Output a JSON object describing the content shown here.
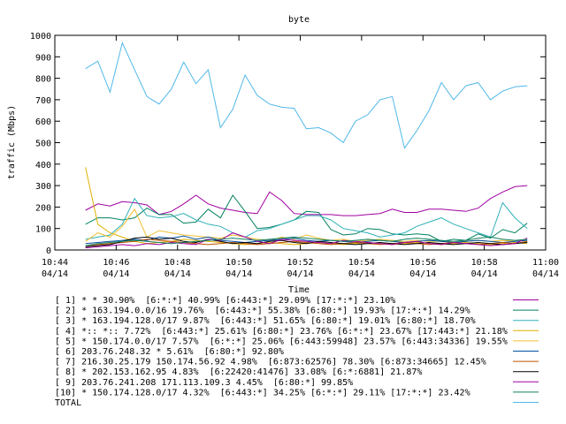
{
  "chart_data": {
    "type": "line",
    "title": "byte",
    "xlabel": "Time",
    "ylabel": "traffic (Mbps)",
    "ylim": [
      0,
      1000
    ],
    "yticks": [
      0,
      100,
      200,
      300,
      400,
      500,
      600,
      700,
      800,
      900,
      1000
    ],
    "xlim_min": [
      0,
      16
    ],
    "xticks": [
      {
        "m": 0,
        "time": "10:44",
        "date": "04/14"
      },
      {
        "m": 2,
        "time": "10:46",
        "date": "04/14"
      },
      {
        "m": 4,
        "time": "10:48",
        "date": "04/14"
      },
      {
        "m": 6,
        "time": "10:50",
        "date": "04/14"
      },
      {
        "m": 8,
        "time": "10:52",
        "date": "04/14"
      },
      {
        "m": 10,
        "time": "10:54",
        "date": "04/14"
      },
      {
        "m": 12,
        "time": "10:56",
        "date": "04/14"
      },
      {
        "m": 14,
        "time": "10:58",
        "date": "04/14"
      },
      {
        "m": 16,
        "time": "11:00",
        "date": "04/14"
      }
    ],
    "x": [
      1,
      1.4,
      1.8,
      2.2,
      2.6,
      3,
      3.4,
      3.8,
      4.2,
      4.6,
      5,
      5.4,
      5.8,
      6.2,
      6.6,
      7,
      7.4,
      7.8,
      8.2,
      8.6,
      9,
      9.4,
      9.8,
      10.2,
      10.6,
      11,
      11.4,
      11.8,
      12.2,
      12.6,
      13,
      13.4,
      13.8,
      14.2,
      14.6,
      15,
      15.4
    ],
    "grid": false,
    "legend_position": "bottom",
    "series": [
      {
        "name": "[ 1] * * 30.90%  [6:*:*] 40.99% [6:443:*] 29.09% [17:*:*] 23.10%",
        "color": "#a000a0",
        "values": [
          185,
          215,
          205,
          225,
          220,
          210,
          165,
          180,
          215,
          255,
          215,
          195,
          185,
          175,
          170,
          270,
          230,
          170,
          165,
          165,
          165,
          160,
          160,
          165,
          170,
          190,
          175,
          175,
          190,
          190,
          185,
          180,
          195,
          240,
          270,
          295,
          300
        ]
      },
      {
        "name": "[ 2] * 163.194.0.0/16 19.76%  [6:443:*] 55.38% [6:80:*] 19.93% [17:*:*] 14.29%",
        "color": "#00805f",
        "values": [
          120,
          150,
          150,
          140,
          150,
          195,
          165,
          165,
          125,
          130,
          190,
          150,
          255,
          180,
          100,
          105,
          120,
          140,
          180,
          175,
          95,
          70,
          75,
          100,
          95,
          75,
          70,
          75,
          70,
          40,
          50,
          45,
          75,
          55,
          95,
          80,
          125
        ]
      },
      {
        "name": "[ 3] * 163.194.128.0/17 9.87%  [6:443:*] 51.65% [6:80:*] 19.01% [6:80:*] 18.70%",
        "color": "#30b0b8",
        "values": [
          50,
          60,
          70,
          120,
          240,
          160,
          150,
          155,
          170,
          140,
          120,
          110,
          80,
          60,
          90,
          100,
          120,
          140,
          160,
          160,
          140,
          100,
          90,
          80,
          60,
          70,
          80,
          110,
          130,
          150,
          120,
          100,
          80,
          60,
          220,
          150,
          100
        ]
      },
      {
        "name": "[ 4] *:: *:: 7.72%  [6:443:*] 25.61% [6:80:*] 23.76% [6:*:*] 23.67% [17:443:*] 21.18%",
        "color": "#e0b000",
        "values": [
          385,
          120,
          80,
          60,
          40,
          30,
          35,
          40,
          50,
          45,
          40,
          35,
          30,
          25,
          30,
          35,
          30,
          25,
          30,
          35,
          30,
          25,
          30,
          35,
          30,
          25,
          30,
          35,
          30,
          25,
          30,
          35,
          30,
          25,
          30,
          35,
          30
        ]
      },
      {
        "name": "[ 5] * 150.174.0.0/17 7.57%  [6:*:*] 25.06% [6:443:59948] 23.57% [6:443:34336] 19.55%",
        "color": "#f0c030",
        "values": [
          40,
          80,
          60,
          110,
          190,
          60,
          90,
          80,
          70,
          65,
          60,
          55,
          70,
          60,
          50,
          45,
          60,
          50,
          70,
          55,
          45,
          50,
          40,
          45,
          50,
          45,
          40,
          45,
          40,
          40,
          35,
          40,
          45,
          40,
          45,
          40,
          45
        ]
      },
      {
        "name": "[ 6] 203.76.248.32 * 5.61%  [6:80:*] 92.80%",
        "color": "#0050a0",
        "values": [
          30,
          35,
          40,
          45,
          50,
          45,
          60,
          55,
          65,
          50,
          60,
          45,
          40,
          35,
          40,
          45,
          50,
          55,
          45,
          40,
          45,
          40,
          35,
          40,
          45,
          40,
          35,
          40,
          45,
          40,
          35,
          40,
          45,
          40,
          35,
          40,
          45
        ]
      },
      {
        "name": "[ 7] 216.30.25.179 150.174.56.92 4.98%  [6:873:62576] 78.30% [6:873:34665] 12.45%",
        "color": "#c05000",
        "values": [
          20,
          25,
          30,
          35,
          40,
          50,
          45,
          40,
          35,
          30,
          25,
          30,
          35,
          30,
          25,
          30,
          35,
          40,
          35,
          30,
          25,
          30,
          35,
          30,
          25,
          30,
          35,
          30,
          25,
          30,
          35,
          30,
          25,
          30,
          35,
          30,
          40
        ]
      },
      {
        "name": "[ 8] * 202.153.162.95 4.83%  [6:22420:41476] 33.08% [6:*:6881] 21.87%",
        "color": "#000000",
        "values": [
          15,
          20,
          25,
          40,
          55,
          60,
          50,
          55,
          40,
          35,
          50,
          40,
          30,
          35,
          30,
          40,
          45,
          35,
          30,
          40,
          35,
          30,
          25,
          30,
          35,
          30,
          25,
          30,
          35,
          30,
          25,
          30,
          35,
          30,
          25,
          30,
          35
        ]
      },
      {
        "name": "[ 9] 203.76.241.208 171.113.109.3 4.45%  [6:80:*] 99.85%",
        "color": "#a000a0",
        "values": [
          10,
          15,
          20,
          25,
          20,
          30,
          25,
          35,
          30,
          25,
          50,
          45,
          80,
          60,
          40,
          30,
          50,
          45,
          40,
          35,
          30,
          45,
          40,
          35,
          30,
          25,
          35,
          40,
          30,
          25,
          35,
          30,
          25,
          20,
          25,
          30,
          55
        ]
      },
      {
        "name": "[10] * 150.174.128.0/17 4.32%  [6:443:*] 34.25% [6:*:*] 29.11% [17:*:*] 23.42%",
        "color": "#108060",
        "values": [
          20,
          30,
          35,
          40,
          45,
          40,
          35,
          30,
          35,
          40,
          45,
          50,
          55,
          50,
          45,
          50,
          55,
          60,
          55,
          50,
          45,
          40,
          45,
          50,
          45,
          40,
          50,
          55,
          50,
          45,
          40,
          45,
          55,
          60,
          50,
          45,
          50
        ]
      },
      {
        "name": "TOTAL",
        "color": "#50b8e8",
        "values": [
          845,
          880,
          735,
          965,
          840,
          715,
          680,
          750,
          875,
          775,
          840,
          570,
          655,
          815,
          720,
          680,
          665,
          660,
          565,
          570,
          545,
          500,
          600,
          630,
          700,
          715,
          475,
          555,
          650,
          780,
          700,
          765,
          780,
          700,
          740,
          760,
          765
        ]
      }
    ]
  }
}
